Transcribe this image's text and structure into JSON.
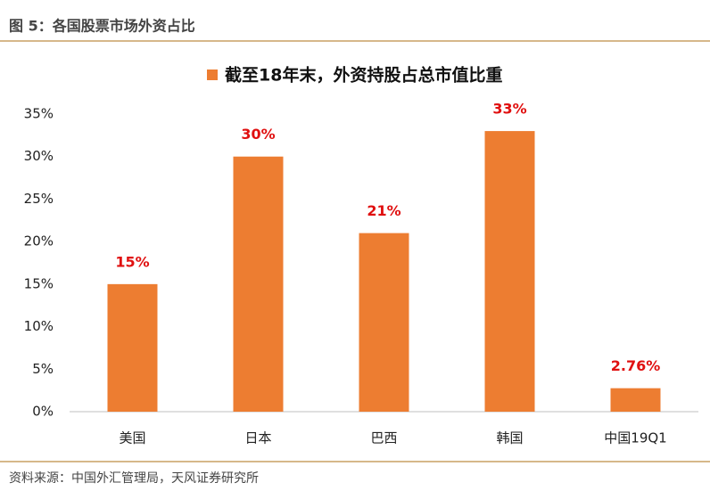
{
  "figure_title": "图 5：各国股票市场外资占比",
  "source": "资料来源：中国外汇管理局，天风证券研究所",
  "chart_data": {
    "type": "bar",
    "categories": [
      "美国",
      "日本",
      "巴西",
      "韩国",
      "中国19Q1"
    ],
    "series": [
      {
        "name": "截至18年末，外资持股占总市值比重",
        "color": "#ed7d31",
        "values": [
          15,
          30,
          21,
          33,
          2.76
        ],
        "value_labels": [
          "15%",
          "30%",
          "21%",
          "33%",
          "2.76%"
        ]
      }
    ],
    "value_label_color": "#e01010",
    "ylim": [
      0,
      35
    ],
    "yticks": [
      {
        "value": 0,
        "label": "0%"
      },
      {
        "value": 5,
        "label": "5%"
      },
      {
        "value": 10,
        "label": "10%"
      },
      {
        "value": 15,
        "label": "15%"
      },
      {
        "value": 20,
        "label": "20%"
      },
      {
        "value": 25,
        "label": "25%"
      },
      {
        "value": 30,
        "label": "30%"
      },
      {
        "value": 35,
        "label": "35%"
      }
    ],
    "grid": false,
    "legend": "top"
  }
}
